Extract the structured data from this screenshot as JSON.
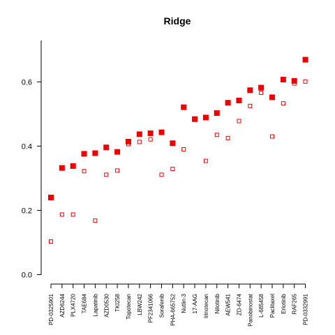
{
  "chart_data": {
    "type": "scatter",
    "title": "Ridge",
    "xlabel": "",
    "ylabel": "",
    "ylim": [
      0,
      0.72
    ],
    "yticks": [
      0.0,
      0.2,
      0.4,
      0.6
    ],
    "ytick_labels": [
      "0.0",
      "0.2",
      "0.4",
      "0.6"
    ],
    "grid": false,
    "colors": {
      "marker": "#ee0000",
      "axis": "#000000"
    },
    "categories": [
      "PD-0325901",
      "AZD6244",
      "PLX4720",
      "TAE684",
      "Lapatinib",
      "AZD0530",
      "TKI258",
      "Topotecan",
      "LBW242",
      "PF2341066",
      "Sorafenib",
      "PHA-665752",
      "Nutlin-3",
      "17-AAG",
      "Irinotecan",
      "Nilotinib",
      "AEW541",
      "ZD-6474",
      "Panobinostat",
      "L-685458",
      "Paclitaxel",
      "Erlotinib",
      "RAF265",
      "PD-0332991"
    ],
    "series": [
      {
        "marker": "filled-square",
        "values": [
          0.24,
          0.332,
          0.338,
          0.376,
          0.378,
          0.396,
          0.382,
          0.414,
          0.437,
          0.44,
          0.443,
          0.409,
          0.521,
          0.484,
          0.489,
          0.503,
          0.535,
          0.542,
          0.574,
          0.582,
          0.552,
          0.607,
          0.603,
          0.669
        ]
      },
      {
        "marker": "open-square",
        "values": [
          0.103,
          0.187,
          0.187,
          0.322,
          0.168,
          0.311,
          0.324,
          0.406,
          0.413,
          0.421,
          0.311,
          0.329,
          0.39,
          0.484,
          0.354,
          0.435,
          0.425,
          0.478,
          0.525,
          0.566,
          0.43,
          0.533,
          0.595,
          0.601
        ]
      }
    ]
  }
}
